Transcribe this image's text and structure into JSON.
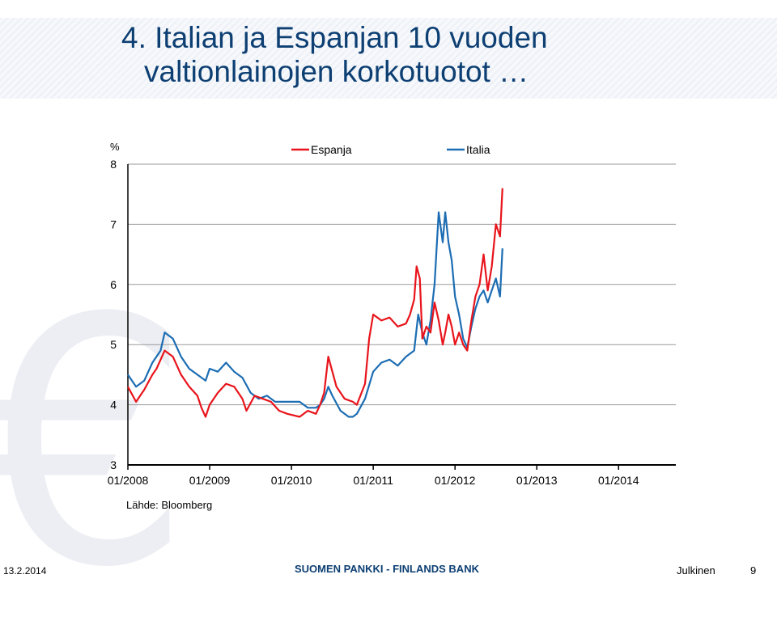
{
  "slide": {
    "title_line1": "4. Italian ja Espanjan 10 vuoden",
    "title_line2": "valtionlainojen korkotuotot …",
    "source": "Lähde: Bloomberg",
    "footer_date": "13.2.2014",
    "footer_bank": "SUOMEN PANKKI - FINLANDS BANK",
    "footer_class": "Julkinen",
    "footer_page": "9"
  },
  "chart_data": {
    "type": "line",
    "ylabel": "%",
    "ylim": [
      3,
      8
    ],
    "yticks": [
      "3",
      "4",
      "5",
      "6",
      "7",
      "8"
    ],
    "xticks": [
      "01/2008",
      "01/2009",
      "01/2010",
      "01/2011",
      "01/2012",
      "01/2013",
      "01/2014"
    ],
    "grid": true,
    "legend": "top",
    "series": [
      {
        "name": "Espanja",
        "color": "#e8141b",
        "x": [
          2008.0,
          2008.1,
          2008.2,
          2008.3,
          2008.35,
          2008.45,
          2008.55,
          2008.65,
          2008.75,
          2008.85,
          2008.9,
          2008.95,
          2009.0,
          2009.1,
          2009.2,
          2009.3,
          2009.4,
          2009.45,
          2009.55,
          2009.65,
          2009.75,
          2009.85,
          2009.95,
          2010.1,
          2010.2,
          2010.3,
          2010.35,
          2010.4,
          2010.45,
          2010.55,
          2010.65,
          2010.75,
          2010.8,
          2010.9,
          2010.95,
          2011.0,
          2011.05,
          2011.1,
          2011.2,
          2011.3,
          2011.4,
          2011.45,
          2011.5,
          2011.53,
          2011.57,
          2011.6,
          2011.65,
          2011.7,
          2011.75,
          2011.8,
          2011.85,
          2011.88,
          2011.92,
          2011.96,
          2012.0,
          2012.05,
          2012.1,
          2012.15,
          2012.2,
          2012.25,
          2012.3,
          2012.35,
          2012.4,
          2012.45,
          2012.5,
          2012.55,
          2012.58
        ],
        "values": [
          4.3,
          4.05,
          4.25,
          4.5,
          4.6,
          4.9,
          4.8,
          4.5,
          4.3,
          4.15,
          3.95,
          3.8,
          4.0,
          4.2,
          4.35,
          4.3,
          4.1,
          3.9,
          4.15,
          4.1,
          4.05,
          3.9,
          3.85,
          3.8,
          3.9,
          3.85,
          4.0,
          4.2,
          4.8,
          4.3,
          4.1,
          4.05,
          4.0,
          4.35,
          5.1,
          5.5,
          5.45,
          5.4,
          5.45,
          5.3,
          5.35,
          5.5,
          5.75,
          6.3,
          6.1,
          5.1,
          5.3,
          5.2,
          5.7,
          5.4,
          5.0,
          5.2,
          5.5,
          5.3,
          5.0,
          5.2,
          5.0,
          4.9,
          5.4,
          5.8,
          6.0,
          6.5,
          5.9,
          6.3,
          7.0,
          6.8,
          7.6
        ]
      },
      {
        "name": "Italia",
        "color": "#1c6db3",
        "x": [
          2008.0,
          2008.1,
          2008.2,
          2008.3,
          2008.4,
          2008.45,
          2008.55,
          2008.65,
          2008.75,
          2008.85,
          2008.95,
          2009.0,
          2009.1,
          2009.2,
          2009.3,
          2009.4,
          2009.5,
          2009.6,
          2009.7,
          2009.8,
          2009.9,
          2010.0,
          2010.1,
          2010.2,
          2010.3,
          2010.35,
          2010.4,
          2010.45,
          2010.5,
          2010.6,
          2010.7,
          2010.75,
          2010.8,
          2010.9,
          2011.0,
          2011.1,
          2011.2,
          2011.3,
          2011.4,
          2011.5,
          2011.55,
          2011.6,
          2011.65,
          2011.7,
          2011.75,
          2011.8,
          2011.85,
          2011.88,
          2011.92,
          2011.96,
          2012.0,
          2012.05,
          2012.1,
          2012.15,
          2012.2,
          2012.25,
          2012.3,
          2012.35,
          2012.4,
          2012.45,
          2012.5,
          2012.55,
          2012.58
        ],
        "values": [
          4.5,
          4.3,
          4.4,
          4.7,
          4.9,
          5.2,
          5.1,
          4.8,
          4.6,
          4.5,
          4.4,
          4.6,
          4.55,
          4.7,
          4.55,
          4.45,
          4.2,
          4.1,
          4.15,
          4.05,
          4.05,
          4.05,
          4.05,
          3.95,
          3.95,
          4.0,
          4.1,
          4.3,
          4.15,
          3.9,
          3.8,
          3.8,
          3.85,
          4.1,
          4.55,
          4.7,
          4.75,
          4.65,
          4.8,
          4.9,
          5.5,
          5.2,
          5.0,
          5.4,
          6.0,
          7.2,
          6.7,
          7.2,
          6.7,
          6.4,
          5.8,
          5.5,
          5.1,
          4.95,
          5.3,
          5.6,
          5.8,
          5.9,
          5.7,
          5.9,
          6.1,
          5.8,
          6.6
        ]
      }
    ]
  }
}
